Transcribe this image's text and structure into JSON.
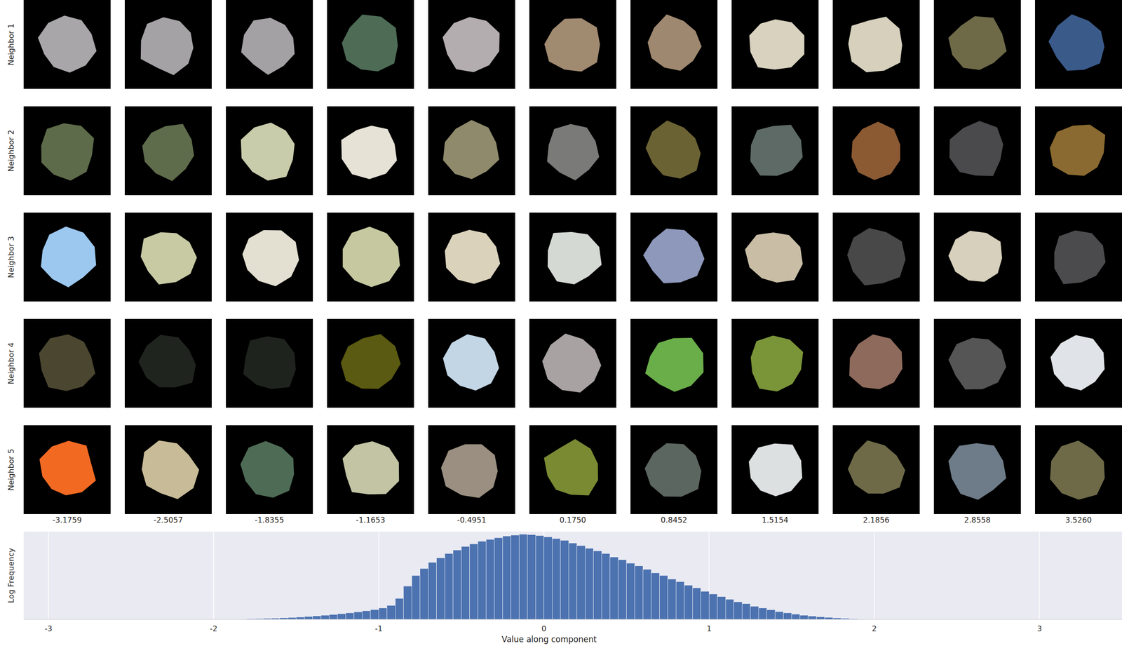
{
  "chart_data": [
    {
      "type": "image_grid",
      "xticks": [
        -3.1759,
        -2.5057,
        -1.8355,
        -1.1653,
        -0.4951,
        {
          "value": 0.175,
          "label": "0.1750"
        },
        0.8452,
        1.5154,
        2.1856,
        2.8558,
        {
          "value": 3.526,
          "label": "3.5260"
        }
      ],
      "series": [
        {
          "name": "Neighbor 1",
          "colors": [
            "#a8a6a9",
            "#a4a2a5",
            "#a3a1a4",
            "#4d6b55",
            "#b3adaf",
            "#a08a70",
            "#9f8870",
            "#d8d2bf",
            "#d6d0bd",
            "#6e6a48",
            "#3a5a8a"
          ]
        },
        {
          "name": "Neighbor 2",
          "colors": [
            "#5d6b4a",
            "#5f6c4c",
            "#c9ccaa",
            "#e6e2d6",
            "#8f8a6b",
            "#7a7a78",
            "#6b6234",
            "#5d6a66",
            "#8b5a33",
            "#4a4a4c",
            "#8a6a30"
          ]
        },
        {
          "name": "Neighbor 3",
          "colors": [
            "#9cc8f0",
            "#c7caa3",
            "#e3dfd1",
            "#c6c9a0",
            "#dbd2bc",
            "#d4d9d4",
            "#8d98bb",
            "#c9bda6",
            "#484848",
            "#d6d0bc",
            "#4b4b4d"
          ]
        },
        {
          "name": "Neighbor 4",
          "colors": [
            "#4a4630",
            "#20241f",
            "#1f231e",
            "#5a5a12",
            "#c3d6e6",
            "#a8a2a2",
            "#6aae4a",
            "#7a9438",
            "#8e6a5c",
            "#555555",
            "#e0e4e8"
          ]
        },
        {
          "name": "Neighbor 5",
          "colors": [
            "#f26a22",
            "#c8bc98",
            "#4d6b55",
            "#c2c4a4",
            "#9a8f80",
            "#7a8a32",
            "#5c6660",
            "#dde0e0",
            "#6e6a48",
            "#6d7c88",
            "#6e6a48"
          ]
        }
      ]
    },
    {
      "type": "histogram",
      "xlabel": "Value along component",
      "ylabel": "Log Frequency",
      "xlim": [
        -3.15,
        3.5
      ],
      "xticks": [
        -3,
        -2,
        -1,
        0,
        1,
        2,
        3
      ],
      "ylim": [
        0,
        1
      ],
      "grid": true,
      "tick_labels": "x",
      "color": "#4c72b0",
      "bins": [
        -1.85,
        -1.8,
        -1.75,
        -1.7,
        -1.65,
        -1.6,
        -1.55,
        -1.5,
        -1.45,
        -1.4,
        -1.35,
        -1.3,
        -1.25,
        -1.2,
        -1.15,
        -1.1,
        -1.05,
        -1.0,
        -0.95,
        -0.9,
        -0.85,
        -0.8,
        -0.75,
        -0.7,
        -0.65,
        -0.6,
        -0.55,
        -0.5,
        -0.45,
        -0.4,
        -0.35,
        -0.3,
        -0.25,
        -0.2,
        -0.15,
        -0.1,
        -0.05,
        0.0,
        0.05,
        0.1,
        0.15,
        0.2,
        0.25,
        0.3,
        0.35,
        0.4,
        0.45,
        0.5,
        0.55,
        0.6,
        0.65,
        0.7,
        0.75,
        0.8,
        0.85,
        0.9,
        0.95,
        1.0,
        1.05,
        1.1,
        1.15,
        1.2,
        1.25,
        1.3,
        1.35,
        1.4,
        1.45,
        1.5,
        1.55,
        1.6,
        1.65,
        1.7,
        1.75,
        1.8,
        1.85,
        1.9,
        1.95
      ],
      "values": [
        0.005,
        0.008,
        0.01,
        0.012,
        0.015,
        0.018,
        0.022,
        0.027,
        0.033,
        0.04,
        0.048,
        0.056,
        0.065,
        0.075,
        0.086,
        0.098,
        0.112,
        0.13,
        0.16,
        0.24,
        0.38,
        0.5,
        0.58,
        0.65,
        0.7,
        0.75,
        0.79,
        0.83,
        0.86,
        0.89,
        0.91,
        0.93,
        0.95,
        0.96,
        0.97,
        0.965,
        0.955,
        0.94,
        0.92,
        0.9,
        0.87,
        0.84,
        0.81,
        0.78,
        0.75,
        0.71,
        0.68,
        0.64,
        0.61,
        0.57,
        0.53,
        0.5,
        0.46,
        0.43,
        0.39,
        0.36,
        0.32,
        0.29,
        0.26,
        0.23,
        0.2,
        0.18,
        0.15,
        0.13,
        0.11,
        0.09,
        0.075,
        0.06,
        0.048,
        0.038,
        0.03,
        0.023,
        0.017,
        0.012,
        0.008,
        0.005
      ]
    }
  ]
}
